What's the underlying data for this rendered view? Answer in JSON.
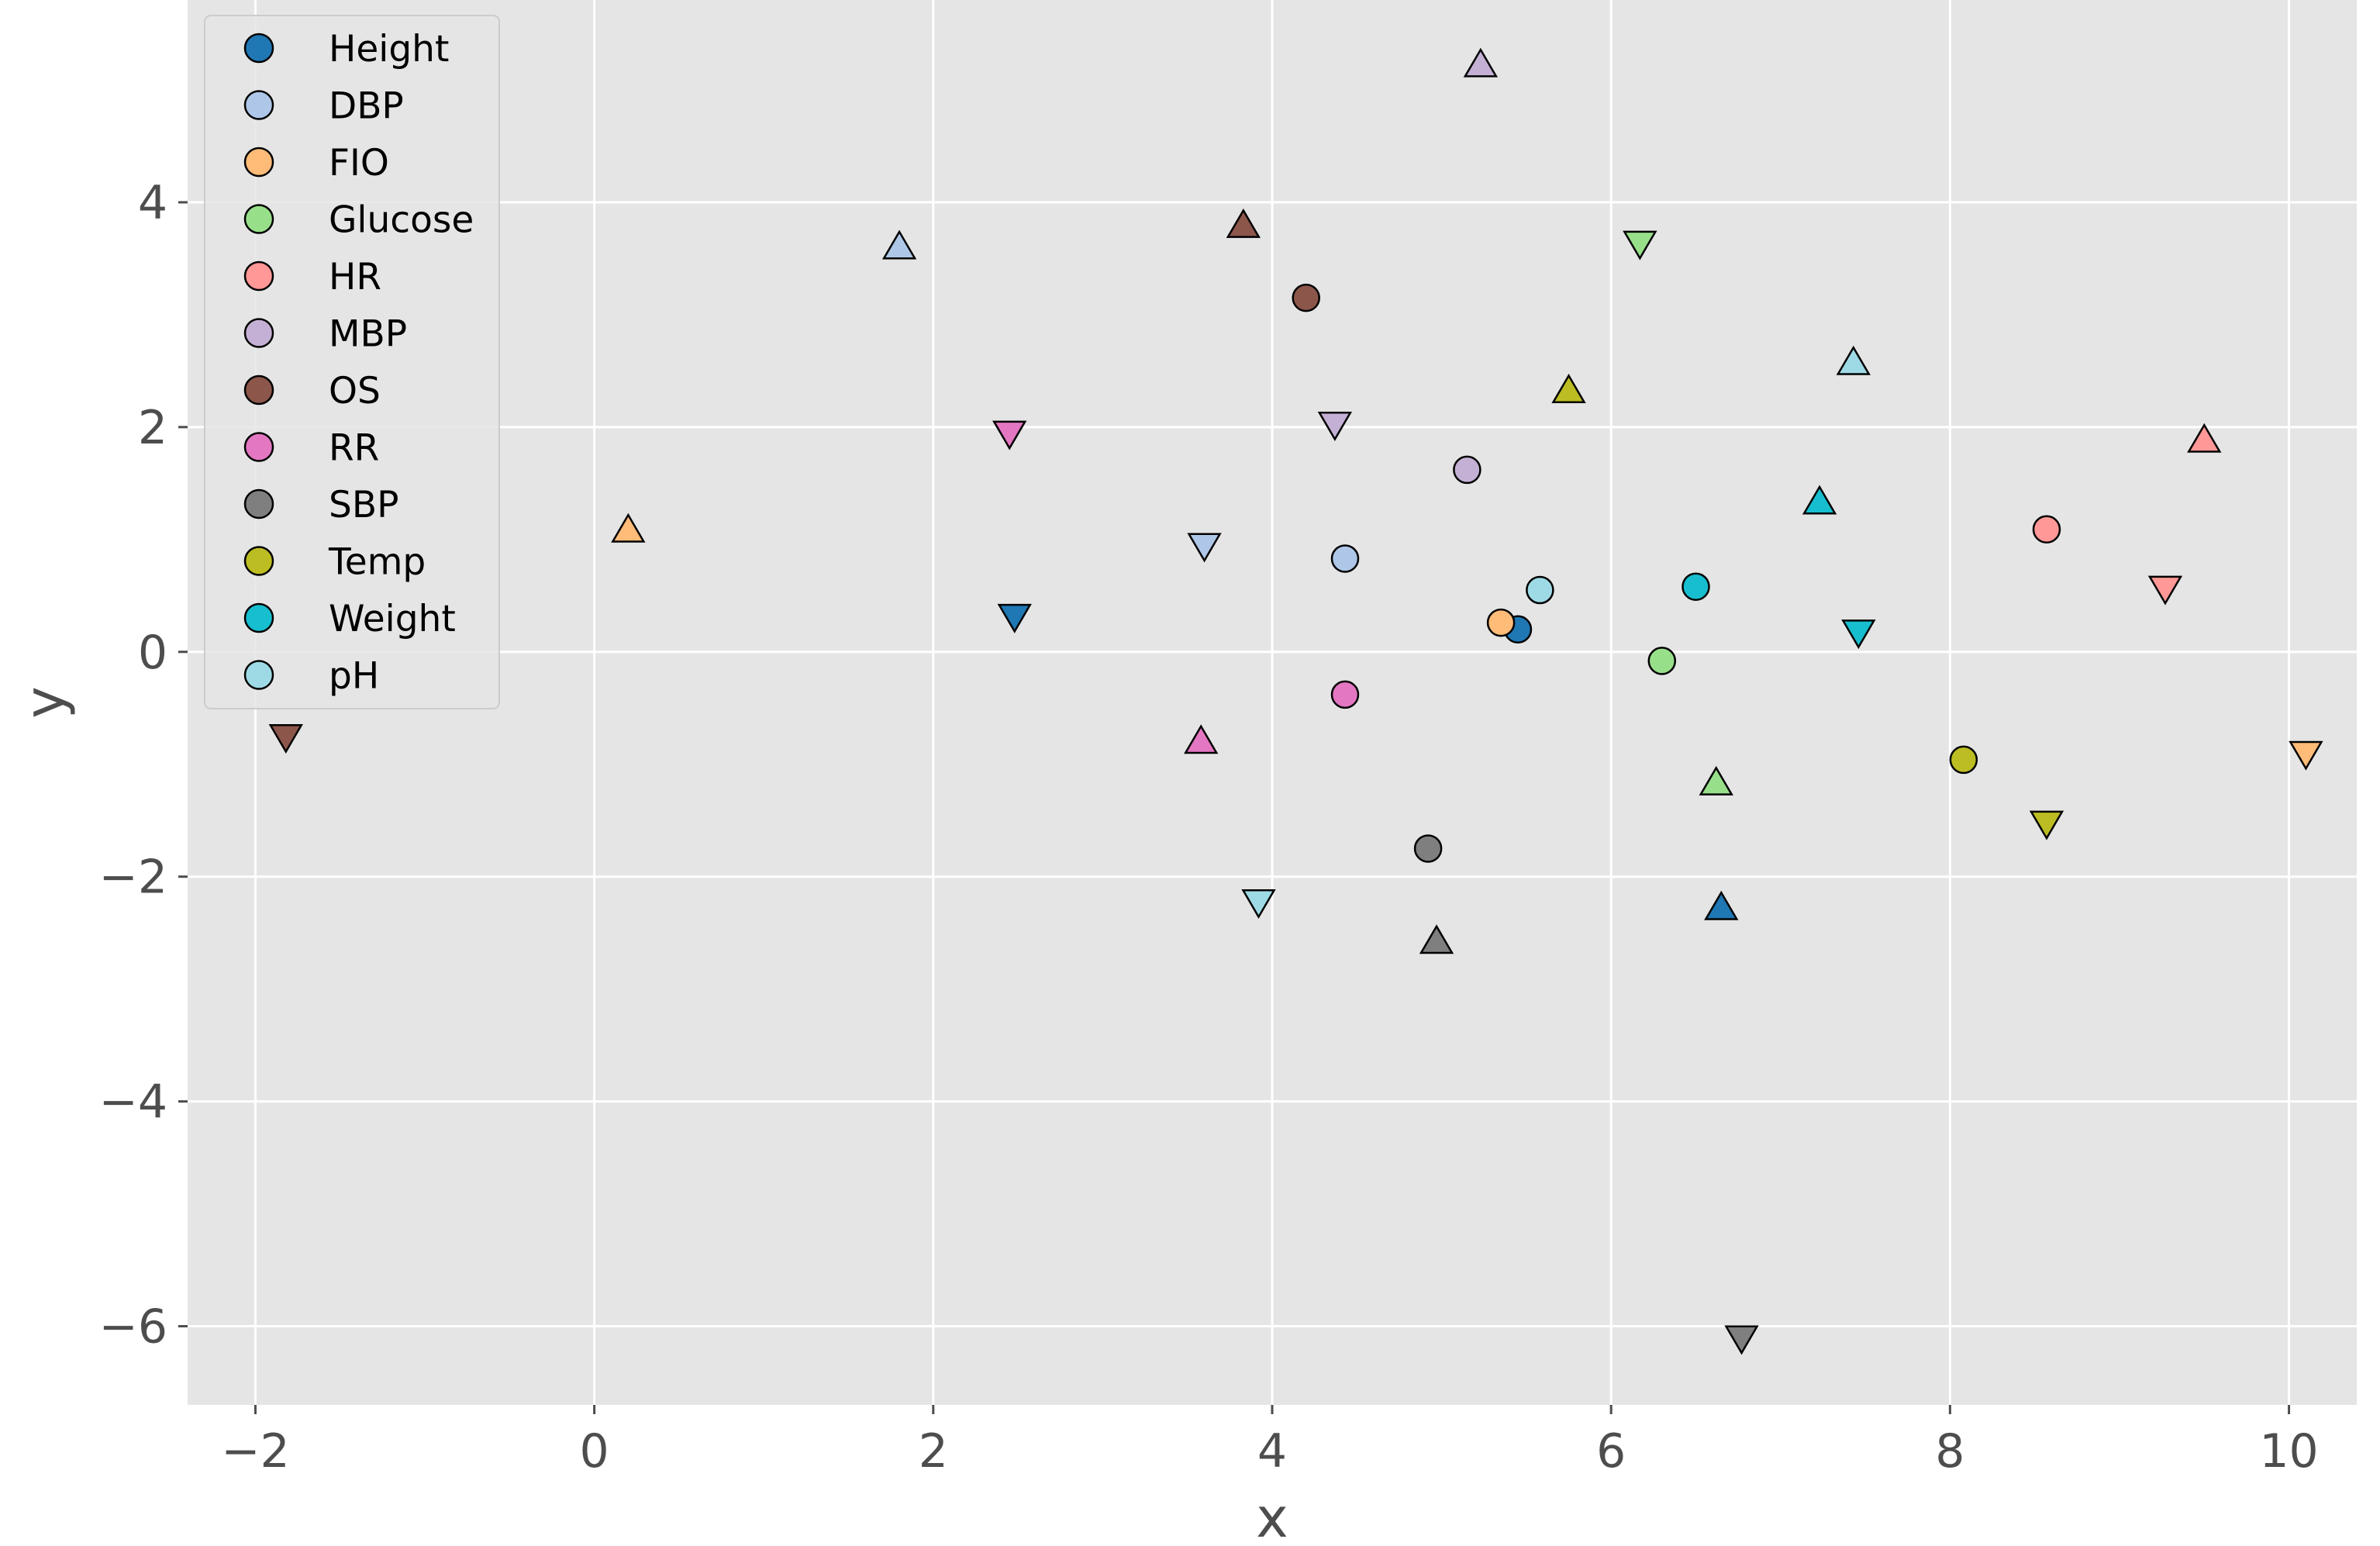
{
  "chart_data": {
    "type": "scatter",
    "xlabel": "x",
    "ylabel": "y",
    "xlim": [
      -2.4,
      10.4
    ],
    "ylim": [
      -6.7,
      5.8
    ],
    "x_ticks": [
      -2,
      0,
      2,
      4,
      6,
      8,
      10
    ],
    "y_ticks": [
      -6,
      -4,
      -2,
      0,
      2,
      4
    ],
    "x_tick_labels": [
      "−2",
      "0",
      "2",
      "4",
      "6",
      "8",
      "10"
    ],
    "y_tick_labels": [
      "−6",
      "−4",
      "−2",
      "0",
      "2",
      "4"
    ],
    "grid": true,
    "background": "#e5e5e5",
    "legend_position": "upper-left",
    "marker_shapes": [
      "circle",
      "triangle-up",
      "triangle-down"
    ],
    "series": [
      {
        "name": "Height",
        "color": "#1f77b4",
        "points": [
          {
            "x": 5.45,
            "y": 0.2,
            "marker": "circle"
          },
          {
            "x": 6.65,
            "y": -2.28,
            "marker": "triangle-up"
          },
          {
            "x": 2.48,
            "y": 0.32,
            "marker": "triangle-down"
          }
        ]
      },
      {
        "name": "DBP",
        "color": "#aec7e8",
        "points": [
          {
            "x": 4.43,
            "y": 0.83,
            "marker": "circle"
          },
          {
            "x": 1.8,
            "y": 3.6,
            "marker": "triangle-up"
          },
          {
            "x": 3.6,
            "y": 0.95,
            "marker": "triangle-down"
          }
        ]
      },
      {
        "name": "FIO",
        "color": "#ffbb78",
        "points": [
          {
            "x": 5.35,
            "y": 0.26,
            "marker": "circle"
          },
          {
            "x": 0.2,
            "y": 1.08,
            "marker": "triangle-up"
          },
          {
            "x": 10.1,
            "y": -0.9,
            "marker": "triangle-down"
          }
        ]
      },
      {
        "name": "Glucose",
        "color": "#98df8a",
        "points": [
          {
            "x": 6.3,
            "y": -0.08,
            "marker": "circle"
          },
          {
            "x": 6.62,
            "y": -1.17,
            "marker": "triangle-up"
          },
          {
            "x": 6.17,
            "y": 3.64,
            "marker": "triangle-down"
          }
        ]
      },
      {
        "name": "HR",
        "color": "#ff9896",
        "points": [
          {
            "x": 8.57,
            "y": 1.09,
            "marker": "circle"
          },
          {
            "x": 9.5,
            "y": 1.88,
            "marker": "triangle-up"
          },
          {
            "x": 9.27,
            "y": 0.57,
            "marker": "triangle-down"
          }
        ]
      },
      {
        "name": "MBP",
        "color": "#c5b0d5",
        "points": [
          {
            "x": 5.15,
            "y": 1.62,
            "marker": "circle"
          },
          {
            "x": 5.23,
            "y": 5.22,
            "marker": "triangle-up"
          },
          {
            "x": 4.37,
            "y": 2.03,
            "marker": "triangle-down"
          }
        ]
      },
      {
        "name": "OS",
        "color": "#8c564b",
        "points": [
          {
            "x": 4.2,
            "y": 3.15,
            "marker": "circle"
          },
          {
            "x": 3.83,
            "y": 3.79,
            "marker": "triangle-up"
          },
          {
            "x": -1.82,
            "y": -0.75,
            "marker": "triangle-down"
          }
        ]
      },
      {
        "name": "RR",
        "color": "#e377c2",
        "points": [
          {
            "x": 4.43,
            "y": -0.38,
            "marker": "circle"
          },
          {
            "x": 3.58,
            "y": -0.8,
            "marker": "triangle-up"
          },
          {
            "x": 2.45,
            "y": 1.95,
            "marker": "triangle-down"
          }
        ]
      },
      {
        "name": "SBP",
        "color": "#7f7f7f",
        "points": [
          {
            "x": 4.92,
            "y": -1.75,
            "marker": "circle"
          },
          {
            "x": 4.97,
            "y": -2.58,
            "marker": "triangle-up"
          },
          {
            "x": 6.77,
            "y": -6.1,
            "marker": "triangle-down"
          }
        ]
      },
      {
        "name": "Temp",
        "color": "#bcbd22",
        "points": [
          {
            "x": 8.08,
            "y": -0.96,
            "marker": "circle"
          },
          {
            "x": 5.75,
            "y": 2.32,
            "marker": "triangle-up"
          },
          {
            "x": 8.57,
            "y": -1.52,
            "marker": "triangle-down"
          }
        ]
      },
      {
        "name": "Weight",
        "color": "#17becf",
        "points": [
          {
            "x": 6.5,
            "y": 0.58,
            "marker": "circle"
          },
          {
            "x": 7.23,
            "y": 1.33,
            "marker": "triangle-up"
          },
          {
            "x": 7.46,
            "y": 0.18,
            "marker": "triangle-down"
          }
        ]
      },
      {
        "name": "pH",
        "color": "#9edae5",
        "points": [
          {
            "x": 5.58,
            "y": 0.55,
            "marker": "circle"
          },
          {
            "x": 7.43,
            "y": 2.57,
            "marker": "triangle-up"
          },
          {
            "x": 3.92,
            "y": -2.22,
            "marker": "triangle-down"
          }
        ]
      }
    ]
  }
}
